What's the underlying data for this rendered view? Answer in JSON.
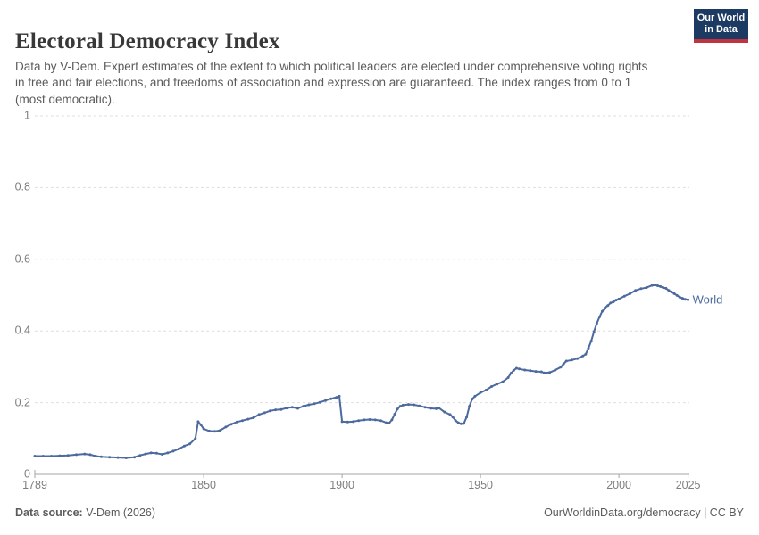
{
  "header": {
    "title": "Electoral Democracy Index",
    "subtitle": "Data by V-Dem. Expert estimates of the extent to which political leaders are elected under comprehensive voting rights in free and fair elections, and freedoms of association and expression are guaranteed. The index ranges from 0 to 1 (most democratic)."
  },
  "logo": {
    "line1": "Our World",
    "line2": "in Data",
    "bg_color": "#1d3a63",
    "stripe_color": "#c0343f"
  },
  "footer": {
    "source_label": "Data source:",
    "source_value": " V-Dem (2026)",
    "credit": "OurWorldinData.org/democracy | CC BY"
  },
  "chart_data": {
    "type": "line",
    "title": "Electoral Democracy Index",
    "xlabel": "",
    "ylabel": "",
    "xlim": [
      1789,
      2025
    ],
    "ylim": [
      0,
      1
    ],
    "x_ticks": [
      1789,
      1850,
      1900,
      1950,
      2000,
      2025
    ],
    "y_ticks": [
      0,
      0.2,
      0.4,
      0.6,
      0.8,
      1
    ],
    "y_tick_labels": [
      "0",
      "0.2",
      "0.4",
      "0.6",
      "0.8",
      "1"
    ],
    "grid": "horizontal-dashed",
    "grid_color": "#dedede",
    "axis_color": "#a5a5a5",
    "legend": "end-of-line-label",
    "series": [
      {
        "name": "World",
        "color": "#4c6a9d",
        "points": [
          [
            1789,
            0.051
          ],
          [
            1792,
            0.051
          ],
          [
            1795,
            0.051
          ],
          [
            1798,
            0.052
          ],
          [
            1801,
            0.053
          ],
          [
            1804,
            0.055
          ],
          [
            1807,
            0.057
          ],
          [
            1809,
            0.055
          ],
          [
            1811,
            0.051
          ],
          [
            1813,
            0.049
          ],
          [
            1816,
            0.048
          ],
          [
            1819,
            0.047
          ],
          [
            1822,
            0.046
          ],
          [
            1825,
            0.048
          ],
          [
            1827,
            0.053
          ],
          [
            1829,
            0.057
          ],
          [
            1831,
            0.06
          ],
          [
            1833,
            0.059
          ],
          [
            1835,
            0.056
          ],
          [
            1837,
            0.06
          ],
          [
            1839,
            0.065
          ],
          [
            1841,
            0.071
          ],
          [
            1843,
            0.079
          ],
          [
            1845,
            0.085
          ],
          [
            1847,
            0.1
          ],
          [
            1848,
            0.147
          ],
          [
            1849,
            0.138
          ],
          [
            1850,
            0.127
          ],
          [
            1852,
            0.121
          ],
          [
            1854,
            0.12
          ],
          [
            1856,
            0.123
          ],
          [
            1858,
            0.132
          ],
          [
            1860,
            0.14
          ],
          [
            1862,
            0.146
          ],
          [
            1864,
            0.15
          ],
          [
            1866,
            0.154
          ],
          [
            1868,
            0.158
          ],
          [
            1870,
            0.167
          ],
          [
            1872,
            0.172
          ],
          [
            1874,
            0.177
          ],
          [
            1876,
            0.18
          ],
          [
            1878,
            0.181
          ],
          [
            1880,
            0.185
          ],
          [
            1882,
            0.187
          ],
          [
            1884,
            0.184
          ],
          [
            1886,
            0.19
          ],
          [
            1888,
            0.194
          ],
          [
            1890,
            0.197
          ],
          [
            1892,
            0.201
          ],
          [
            1894,
            0.206
          ],
          [
            1896,
            0.211
          ],
          [
            1898,
            0.215
          ],
          [
            1899,
            0.218
          ],
          [
            1900,
            0.147
          ],
          [
            1902,
            0.146
          ],
          [
            1904,
            0.147
          ],
          [
            1906,
            0.15
          ],
          [
            1908,
            0.152
          ],
          [
            1910,
            0.153
          ],
          [
            1912,
            0.152
          ],
          [
            1914,
            0.15
          ],
          [
            1916,
            0.144
          ],
          [
            1917,
            0.143
          ],
          [
            1918,
            0.152
          ],
          [
            1919,
            0.168
          ],
          [
            1920,
            0.182
          ],
          [
            1921,
            0.19
          ],
          [
            1922,
            0.193
          ],
          [
            1924,
            0.195
          ],
          [
            1926,
            0.194
          ],
          [
            1928,
            0.191
          ],
          [
            1930,
            0.187
          ],
          [
            1932,
            0.184
          ],
          [
            1934,
            0.183
          ],
          [
            1935,
            0.185
          ],
          [
            1937,
            0.174
          ],
          [
            1939,
            0.167
          ],
          [
            1940,
            0.16
          ],
          [
            1941,
            0.15
          ],
          [
            1942,
            0.144
          ],
          [
            1943,
            0.141
          ],
          [
            1944,
            0.142
          ],
          [
            1945,
            0.16
          ],
          [
            1946,
            0.19
          ],
          [
            1947,
            0.21
          ],
          [
            1948,
            0.218
          ],
          [
            1950,
            0.228
          ],
          [
            1952,
            0.235
          ],
          [
            1954,
            0.245
          ],
          [
            1956,
            0.252
          ],
          [
            1958,
            0.258
          ],
          [
            1960,
            0.27
          ],
          [
            1961,
            0.282
          ],
          [
            1962,
            0.29
          ],
          [
            1963,
            0.296
          ],
          [
            1964,
            0.294
          ],
          [
            1966,
            0.291
          ],
          [
            1968,
            0.289
          ],
          [
            1970,
            0.287
          ],
          [
            1972,
            0.286
          ],
          [
            1973,
            0.283
          ],
          [
            1975,
            0.284
          ],
          [
            1977,
            0.291
          ],
          [
            1979,
            0.299
          ],
          [
            1980,
            0.308
          ],
          [
            1981,
            0.316
          ],
          [
            1983,
            0.319
          ],
          [
            1985,
            0.323
          ],
          [
            1987,
            0.33
          ],
          [
            1988,
            0.335
          ],
          [
            1989,
            0.352
          ],
          [
            1990,
            0.372
          ],
          [
            1991,
            0.398
          ],
          [
            1992,
            0.421
          ],
          [
            1993,
            0.439
          ],
          [
            1994,
            0.455
          ],
          [
            1995,
            0.465
          ],
          [
            1996,
            0.471
          ],
          [
            1997,
            0.478
          ],
          [
            1998,
            0.481
          ],
          [
            1999,
            0.486
          ],
          [
            2000,
            0.489
          ],
          [
            2002,
            0.497
          ],
          [
            2004,
            0.504
          ],
          [
            2006,
            0.513
          ],
          [
            2008,
            0.518
          ],
          [
            2010,
            0.521
          ],
          [
            2012,
            0.527
          ],
          [
            2013,
            0.528
          ],
          [
            2014,
            0.526
          ],
          [
            2015,
            0.524
          ],
          [
            2016,
            0.521
          ],
          [
            2017,
            0.519
          ],
          [
            2018,
            0.513
          ],
          [
            2019,
            0.509
          ],
          [
            2020,
            0.504
          ],
          [
            2021,
            0.499
          ],
          [
            2022,
            0.494
          ],
          [
            2023,
            0.491
          ],
          [
            2024,
            0.488
          ],
          [
            2025,
            0.487
          ]
        ]
      }
    ]
  }
}
